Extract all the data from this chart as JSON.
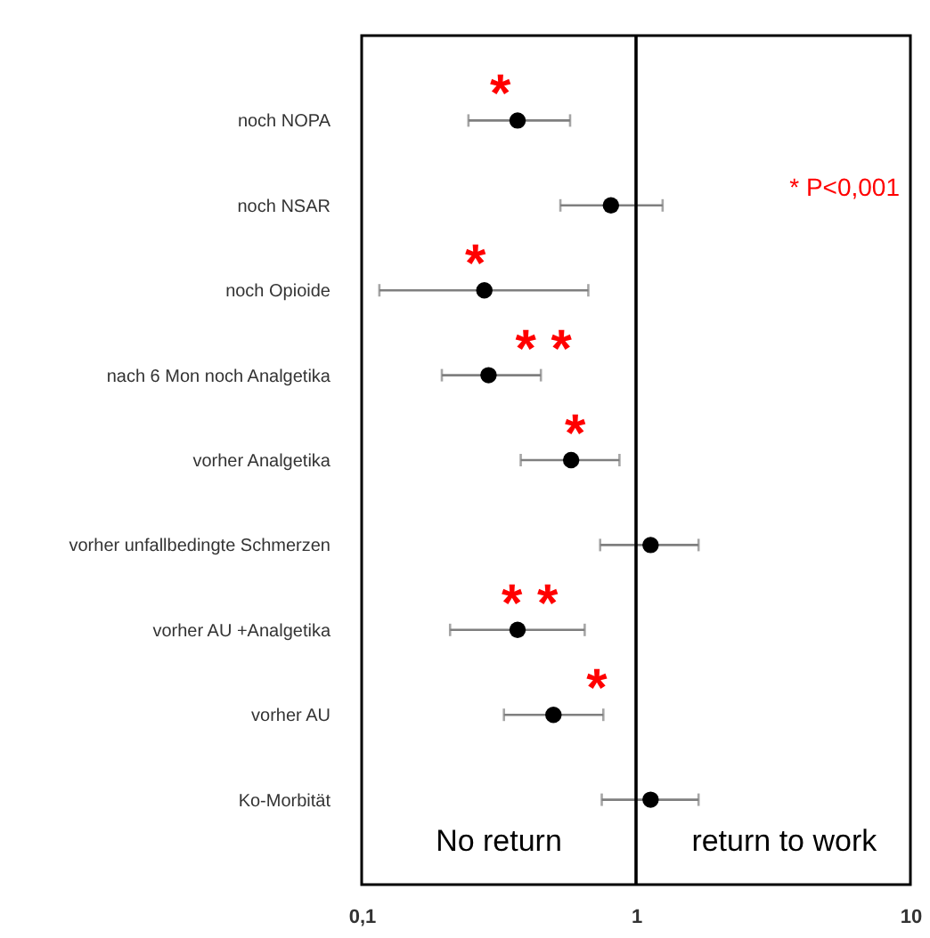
{
  "chart_data": {
    "type": "scatter",
    "marker": "circle",
    "grid": false,
    "log": "x",
    "categories": [
      "noch NOPA",
      "noch NSAR",
      "noch Opioide",
      "nach 6 Mon noch Analgetika",
      "vorher Analgetika",
      "vorher unfallbedingte Schmerzen",
      "vorher AU +Analgetika",
      "vorher AU",
      "Ko-Morbität"
    ],
    "series": [
      {
        "color": "#000000",
        "values": [
          0.37,
          0.81,
          0.28,
          0.29,
          0.58,
          1.13,
          0.37,
          0.5,
          1.13
        ],
        "errors": [
          [
            0.245,
            0.575
          ],
          [
            0.53,
            1.25
          ],
          [
            0.116,
            0.67
          ],
          [
            0.196,
            0.45
          ],
          [
            0.38,
            0.87
          ],
          [
            0.74,
            1.69
          ],
          [
            0.21,
            0.65
          ],
          [
            0.33,
            0.76
          ],
          [
            0.75,
            1.69
          ]
        ]
      }
    ],
    "orientation": "horizontal",
    "xlim": [
      0.1,
      10
    ],
    "xticks": [
      {
        "value": 0.1,
        "label": "0,1"
      },
      1,
      10
    ],
    "ref_lines": [
      {
        "axis": "x",
        "value": 1,
        "color": "#000000"
      }
    ],
    "annotations": [
      {
        "text": "*",
        "x": 0.32,
        "y": "noch NOPA"
      },
      {
        "text": "*",
        "x": 0.26,
        "y": "noch Opioide"
      },
      {
        "text": "* *",
        "x": 0.46,
        "y": "nach 6 Mon noch Analgetika"
      },
      {
        "text": "*",
        "x": 0.6,
        "y": "vorher Analgetika"
      },
      {
        "text": "* *",
        "x": 0.41,
        "y": "vorher AU +Analgetika"
      },
      {
        "text": "*",
        "x": 0.72,
        "y": "vorher AU"
      },
      "* P<0,001",
      "No return",
      "return to work"
    ]
  }
}
